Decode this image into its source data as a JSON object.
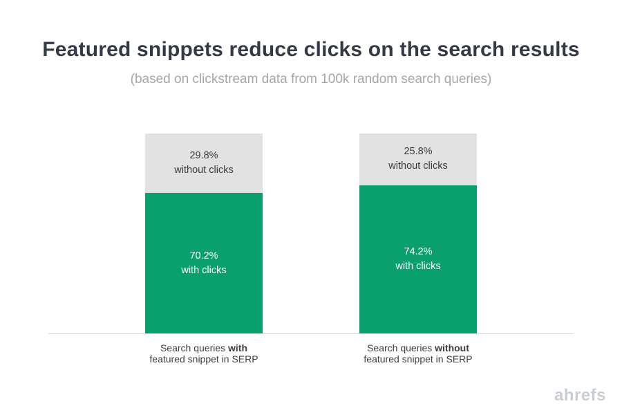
{
  "title": "Featured snippets reduce clicks on the search results",
  "subtitle": "(based on clickstream data from 100k random search queries)",
  "brand": "ahrefs",
  "colors": {
    "green": "#0aa06e",
    "gray_segment": "#e2e2e2",
    "title": "#333a45",
    "subtitle": "#a6a6a6",
    "brand": "#c9ced4"
  },
  "chart_data": {
    "type": "bar",
    "stacked": true,
    "title": "Featured snippets reduce clicks on the search results",
    "subtitle": "(based on clickstream data from 100k random search queries)",
    "categories": [
      "Search queries with featured snippet in SERP",
      "Search queries without featured snippet in SERP"
    ],
    "series": [
      {
        "name": "without clicks",
        "values": [
          29.8,
          25.8
        ],
        "color": "#e2e2e2"
      },
      {
        "name": "with clicks",
        "values": [
          70.2,
          74.2
        ],
        "color": "#0aa06e"
      }
    ],
    "ylim": [
      0,
      100
    ],
    "grid": false,
    "legend": "none",
    "value_labels": "inside"
  },
  "bars": [
    {
      "without_pct": "29.8%",
      "without_label": "without clicks",
      "with_pct": "70.2%",
      "with_label": "with clicks",
      "gray_height": 29.8,
      "green_height": 70.2,
      "caption_prefix": "Search queries ",
      "caption_bold": "with",
      "caption_line2": "featured snippet in SERP"
    },
    {
      "without_pct": "25.8%",
      "without_label": "without clicks",
      "with_pct": "74.2%",
      "with_label": "with clicks",
      "gray_height": 25.8,
      "green_height": 74.2,
      "caption_prefix": "Search queries ",
      "caption_bold": "without",
      "caption_line2": "featured snippet in SERP"
    }
  ]
}
